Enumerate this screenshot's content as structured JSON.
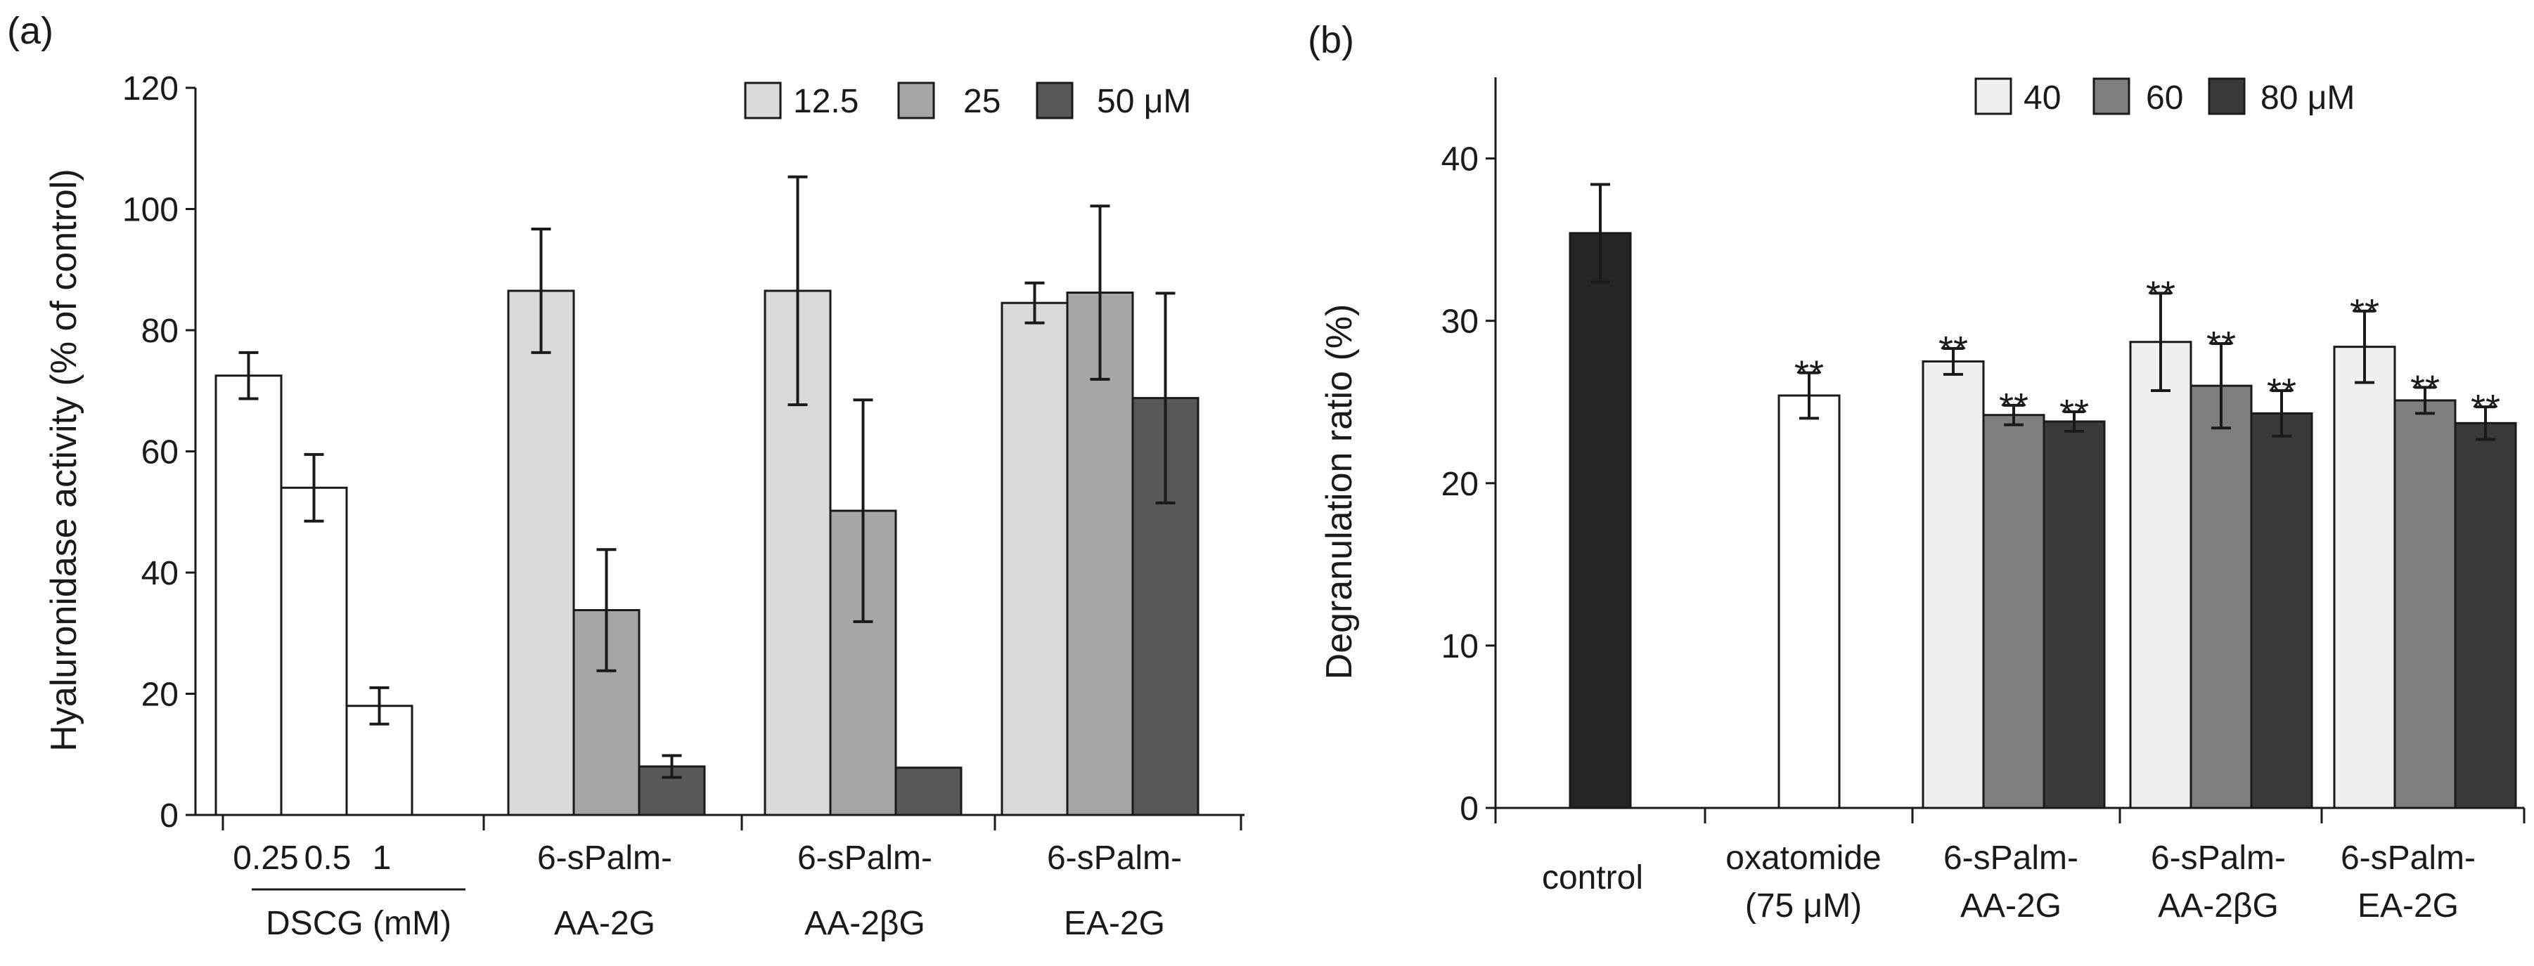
{
  "figure": {
    "colors": {
      "white": "#ffffff",
      "light": "#d9d9d9",
      "lighter": "#efefef",
      "mid": "#a6a6a6",
      "mid2": "#7f7f7f",
      "dark": "#595959",
      "darker": "#3a3a3a",
      "black": "#262626",
      "axis": "#1a1a1a"
    }
  },
  "chart_data": [
    {
      "panel_label": "(a)",
      "type": "bar",
      "title": "",
      "ylabel": "Hyaluronidase  activity (% of control)",
      "xlabel": "",
      "ylim": [
        0,
        120
      ],
      "yticks": [
        0,
        20,
        40,
        60,
        80,
        100,
        120
      ],
      "ytick_labels": [
        "0",
        "20",
        "40",
        "60",
        "80",
        "100",
        "120"
      ],
      "legend": {
        "position": "top-right",
        "entries": [
          {
            "label": "12.5",
            "color_key": "light"
          },
          {
            "label": "25",
            "color_key": "mid"
          },
          {
            "label": "50 μM",
            "color_key": "dark"
          }
        ]
      },
      "groups": [
        {
          "name": "DSCG (mM)",
          "label_lines": [
            "DSCG (mM)"
          ],
          "bars": [
            {
              "label": "0.25",
              "value": 72.5,
              "error": 3.8,
              "color_key": "white"
            },
            {
              "label": "0.5",
              "value": 54,
              "error": 5.5,
              "color_key": "white"
            },
            {
              "label": "1",
              "value": 18,
              "error": 3,
              "color_key": "white"
            }
          ]
        },
        {
          "name": "6-sPalm-AA-2G",
          "label_lines": [
            "6-sPalm-",
            "AA-2G"
          ],
          "bars": [
            {
              "label": "12.5",
              "value": 86.5,
              "error": 10.2,
              "color_key": "light"
            },
            {
              "label": "25",
              "value": 33.8,
              "error": 10,
              "color_key": "mid"
            },
            {
              "label": "50 μM",
              "value": 8,
              "error": 1.8,
              "color_key": "dark"
            }
          ]
        },
        {
          "name": "6-sPalm-AA-2βG",
          "label_lines": [
            "6-sPalm-",
            "AA-2βG"
          ],
          "bars": [
            {
              "label": "12.5",
              "value": 86.5,
              "error": 18.8,
              "color_key": "light"
            },
            {
              "label": "25",
              "value": 50.2,
              "error": 18.3,
              "color_key": "mid"
            },
            {
              "label": "50 μM",
              "value": 7.8,
              "error": 0,
              "color_key": "dark"
            }
          ]
        },
        {
          "name": "6-sPalm-EA-2G",
          "label_lines": [
            "6-sPalm-",
            "EA-2G"
          ],
          "bars": [
            {
              "label": "12.5",
              "value": 84.5,
              "error": 3.3,
              "color_key": "light"
            },
            {
              "label": "25",
              "value": 86.2,
              "error": 14.3,
              "color_key": "mid"
            },
            {
              "label": "50 μM",
              "value": 68.8,
              "error": 17.3,
              "color_key": "dark"
            }
          ]
        }
      ]
    },
    {
      "panel_label": "(b)",
      "type": "bar",
      "title": "",
      "ylabel": "Degranulation ratio (%)",
      "xlabel": "",
      "ylim": [
        0,
        45
      ],
      "yticks": [
        0,
        10,
        20,
        30,
        40
      ],
      "ytick_labels": [
        "0",
        "10",
        "20",
        "30",
        "40"
      ],
      "legend": {
        "position": "top-right",
        "entries": [
          {
            "label": "40",
            "color_key": "lighter"
          },
          {
            "label": "60",
            "color_key": "mid2"
          },
          {
            "label": "80 μM",
            "color_key": "darker"
          }
        ]
      },
      "groups": [
        {
          "name": "control",
          "label_lines": [
            "control"
          ],
          "bars": [
            {
              "label": "control",
              "value": 35.4,
              "error": 3,
              "color_key": "black",
              "annotation": ""
            }
          ]
        },
        {
          "name": "oxatomide (75 μM)",
          "label_lines": [
            "oxatomide",
            "(75 μM)"
          ],
          "bars": [
            {
              "label": "oxatomide",
              "value": 25.4,
              "error": 1.4,
              "color_key": "white",
              "annotation": "**"
            }
          ]
        },
        {
          "name": "6-sPalm-AA-2G",
          "label_lines": [
            "6-sPalm-",
            "AA-2G"
          ],
          "bars": [
            {
              "label": "40",
              "value": 27.5,
              "error": 0.8,
              "color_key": "lighter",
              "annotation": "**"
            },
            {
              "label": "60",
              "value": 24.2,
              "error": 0.6,
              "color_key": "mid2",
              "annotation": "**"
            },
            {
              "label": "80 μM",
              "value": 23.8,
              "error": 0.6,
              "color_key": "darker",
              "annotation": "**"
            }
          ]
        },
        {
          "name": "6-sPalm-AA-2βG",
          "label_lines": [
            "6-sPalm-",
            "AA-2βG"
          ],
          "bars": [
            {
              "label": "40",
              "value": 28.7,
              "error": 3,
              "color_key": "lighter",
              "annotation": "**"
            },
            {
              "label": "60",
              "value": 26,
              "error": 2.6,
              "color_key": "mid2",
              "annotation": "**"
            },
            {
              "label": "80 μM",
              "value": 24.3,
              "error": 1.4,
              "color_key": "darker",
              "annotation": "**"
            }
          ]
        },
        {
          "name": "6-sPalm-EA-2G",
          "label_lines": [
            "6-sPalm-",
            "EA-2G"
          ],
          "bars": [
            {
              "label": "40",
              "value": 28.4,
              "error": 2.2,
              "color_key": "lighter",
              "annotation": "**"
            },
            {
              "label": "60",
              "value": 25.1,
              "error": 0.8,
              "color_key": "mid2",
              "annotation": "**"
            },
            {
              "label": "80 μM",
              "value": 23.7,
              "error": 1,
              "color_key": "darker",
              "annotation": "**"
            }
          ]
        }
      ]
    }
  ],
  "dscg_doses": [
    "0.25",
    "0.5",
    "1"
  ]
}
